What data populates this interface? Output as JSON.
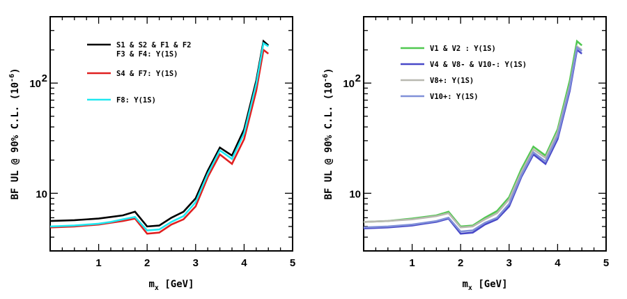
{
  "chart_data": [
    {
      "type": "line",
      "panel": "left",
      "xlabel": "m_x [GeV]",
      "xlabel_main": "m",
      "xlabel_sub": "x",
      "xlabel_unit": "[GeV]",
      "ylabel": "BF UL @ 90% C.L. (10^-6)",
      "ylabel_main": "BF UL @ 90% C.L. (10",
      "ylabel_exp": "-6",
      "ylabel_close": ")",
      "yscale": "log",
      "xlim": [
        0,
        5
      ],
      "ylim": [
        3.0,
        400
      ],
      "x_ticks": [
        "1",
        "2",
        "3",
        "4",
        "5"
      ],
      "y_ticks": [
        "10",
        "10"
      ],
      "y_tick_exp": "2",
      "legend_position": "top-left",
      "series": [
        {
          "name_lines": [
            "S1 & S2 & F1 & F2",
            "F3 & F4: Υ(1S)"
          ],
          "color": "#000000",
          "x": [
            0.0,
            0.5,
            1.0,
            1.25,
            1.5,
            1.75,
            2.0,
            2.25,
            2.5,
            2.75,
            3.0,
            3.25,
            3.5,
            3.75,
            4.0,
            4.25,
            4.4,
            4.5
          ],
          "y": [
            5.6,
            5.7,
            5.9,
            6.1,
            6.3,
            6.8,
            5.0,
            5.1,
            6.0,
            6.8,
            9.0,
            16.0,
            26.0,
            22.0,
            38.0,
            105.0,
            240.0,
            220.0
          ]
        },
        {
          "name_lines": [
            "S4 & F7: Υ(1S)"
          ],
          "color": "#e02020",
          "x": [
            0.0,
            0.5,
            1.0,
            1.25,
            1.5,
            1.75,
            2.0,
            2.25,
            2.5,
            2.75,
            3.0,
            3.25,
            3.5,
            3.75,
            4.0,
            4.25,
            4.4,
            4.5
          ],
          "y": [
            4.9,
            5.0,
            5.2,
            5.4,
            5.6,
            5.9,
            4.3,
            4.4,
            5.2,
            5.8,
            7.6,
            14.0,
            22.5,
            18.5,
            31.0,
            85.0,
            200.0,
            185.0
          ]
        },
        {
          "name_lines": [
            "F8: Υ(1S)"
          ],
          "color": "#20e8f0",
          "x": [
            0.0,
            0.5,
            1.0,
            1.25,
            1.5,
            1.75,
            2.0,
            2.25,
            2.5,
            2.75,
            3.0,
            3.25,
            3.5,
            3.75,
            4.0,
            4.25,
            4.4,
            4.5
          ],
          "y": [
            5.0,
            5.1,
            5.3,
            5.5,
            5.8,
            6.1,
            4.6,
            4.7,
            5.5,
            6.2,
            8.3,
            15.0,
            24.5,
            20.5,
            35.0,
            98.0,
            230.0,
            215.0
          ]
        }
      ]
    },
    {
      "type": "line",
      "panel": "right",
      "xlabel": "m_x [GeV]",
      "xlabel_main": "m",
      "xlabel_sub": "x",
      "xlabel_unit": "[GeV]",
      "ylabel": "BF UL @ 90% C.L. (10^-6)",
      "ylabel_main": "BF UL @ 90% C.L. (10",
      "ylabel_exp": "-6",
      "ylabel_close": ")",
      "yscale": "log",
      "xlim": [
        0,
        5
      ],
      "ylim": [
        3.0,
        400
      ],
      "x_ticks": [
        "1",
        "2",
        "3",
        "4",
        "5"
      ],
      "y_ticks": [
        "10",
        "10"
      ],
      "y_tick_exp": "2",
      "legend_position": "top-left",
      "series": [
        {
          "name_lines": [
            "V1 & V2 : Υ(1S)"
          ],
          "color": "#50c850",
          "x": [
            0.0,
            0.5,
            1.0,
            1.25,
            1.5,
            1.75,
            2.0,
            2.25,
            2.5,
            2.75,
            3.0,
            3.25,
            3.5,
            3.75,
            4.0,
            4.25,
            4.4,
            4.5
          ],
          "y": [
            5.5,
            5.6,
            5.9,
            6.1,
            6.3,
            6.8,
            5.0,
            5.1,
            6.0,
            6.9,
            9.2,
            16.5,
            26.5,
            22.0,
            38.0,
            105.0,
            240.0,
            220.0
          ]
        },
        {
          "name_lines": [
            "V4 & V8- & V10-: Υ(1S)"
          ],
          "color": "#4848c8",
          "x": [
            0.0,
            0.5,
            1.0,
            1.25,
            1.5,
            1.75,
            2.0,
            2.25,
            2.5,
            2.75,
            3.0,
            3.25,
            3.5,
            3.75,
            4.0,
            4.25,
            4.4,
            4.5
          ],
          "y": [
            4.8,
            4.9,
            5.1,
            5.3,
            5.5,
            5.9,
            4.3,
            4.4,
            5.2,
            5.8,
            7.6,
            14.0,
            22.5,
            18.5,
            31.0,
            85.0,
            200.0,
            185.0
          ]
        },
        {
          "name_lines": [
            "V8+: Υ(1S)"
          ],
          "color": "#b8b8b0",
          "x": [
            0.0,
            0.5,
            1.0,
            1.25,
            1.5,
            1.75,
            2.0,
            2.25,
            2.5,
            2.75,
            3.0,
            3.25,
            3.5,
            3.75,
            4.0,
            4.25,
            4.4,
            4.5
          ],
          "y": [
            5.5,
            5.6,
            5.8,
            6.0,
            6.2,
            6.6,
            4.9,
            5.0,
            5.8,
            6.6,
            8.8,
            15.5,
            25.0,
            21.0,
            36.0,
            95.0,
            215.0,
            200.0
          ]
        },
        {
          "name_lines": [
            "V10+: Υ(1S)"
          ],
          "color": "#8090d8",
          "x": [
            0.0,
            0.5,
            1.0,
            1.25,
            1.5,
            1.75,
            2.0,
            2.25,
            2.5,
            2.75,
            3.0,
            3.25,
            3.5,
            3.75,
            4.0,
            4.25,
            4.4,
            4.5
          ],
          "y": [
            4.9,
            5.0,
            5.2,
            5.4,
            5.6,
            6.0,
            4.5,
            4.6,
            5.4,
            6.0,
            8.0,
            14.5,
            23.5,
            19.5,
            33.0,
            90.0,
            210.0,
            195.0
          ]
        }
      ]
    }
  ]
}
